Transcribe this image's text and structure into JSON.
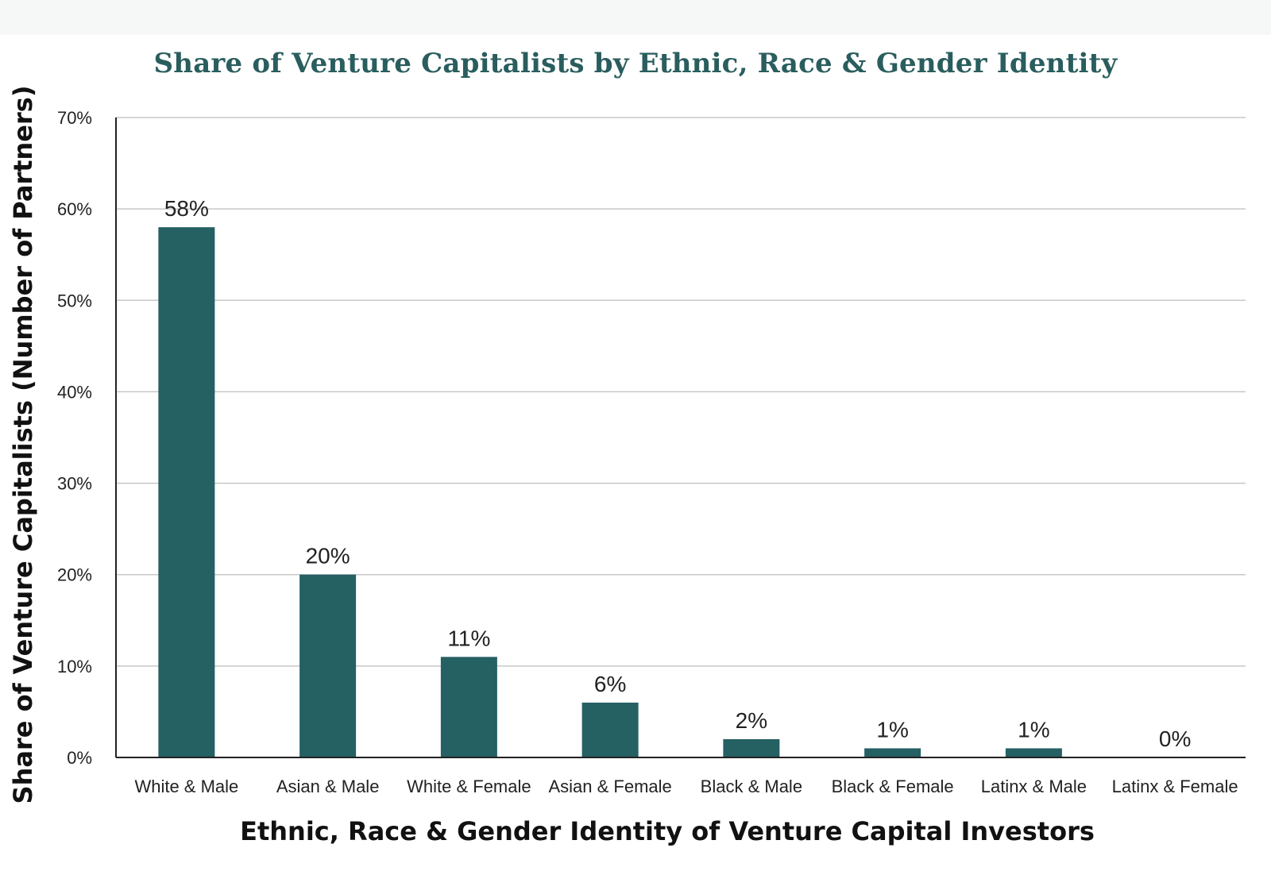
{
  "chart_data": {
    "type": "bar",
    "title": "Share of Venture Capitalists by Ethnic, Race & Gender Identity",
    "xlabel": "Ethnic, Race & Gender Identity of Venture Capital Investors",
    "ylabel": "Share of Venture Capitalists (Number of Partners)",
    "categories": [
      "White & Male",
      "Asian & Male",
      "White & Female",
      "Asian & Female",
      "Black & Male",
      "Black & Female",
      "Latinx & Male",
      "Latinx & Female"
    ],
    "values": [
      58,
      20,
      11,
      6,
      2,
      1,
      1,
      0
    ],
    "data_labels": [
      "58%",
      "20%",
      "11%",
      "6%",
      "2%",
      "1%",
      "1%",
      "0%"
    ],
    "ylim": [
      0,
      70
    ],
    "yticks": [
      0,
      10,
      20,
      30,
      40,
      50,
      60,
      70
    ],
    "ytick_labels": [
      "0%",
      "10%",
      "20%",
      "30%",
      "40%",
      "50%",
      "60%",
      "70%"
    ],
    "grid": true,
    "legend": "none",
    "colors": {
      "bar": "#256063",
      "title": "#2a5d5e",
      "grid": "#c8c8c8",
      "axis": "#222222"
    }
  }
}
